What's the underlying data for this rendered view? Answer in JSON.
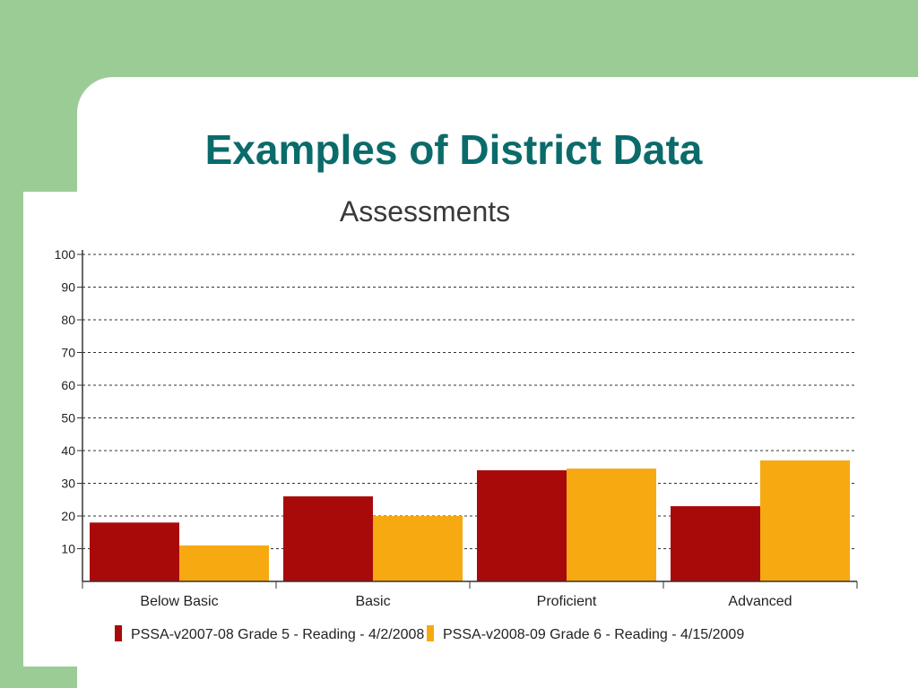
{
  "slide": {
    "title": "Examples of District Data",
    "colors": {
      "background_green": "#9ccc96",
      "title": "#0b6b6b"
    }
  },
  "chart_data": {
    "type": "bar",
    "title": "Assessments",
    "categories": [
      "Below Basic",
      "Basic",
      "Proficient",
      "Advanced"
    ],
    "series": [
      {
        "name": "PSSA-v2007-08 Grade 5 - Reading - 4/2/2008",
        "color": "#a80a0a",
        "values": [
          18,
          26,
          34,
          23
        ]
      },
      {
        "name": "PSSA-v2008-09 Grade 6 - Reading - 4/15/2009",
        "color": "#f7a912",
        "values": [
          11,
          20,
          34.5,
          37
        ]
      }
    ],
    "yticks": [
      10,
      20,
      30,
      40,
      50,
      60,
      70,
      80,
      90,
      100
    ],
    "ylim": [
      0,
      100
    ],
    "grid": true,
    "legend": "bottom"
  }
}
